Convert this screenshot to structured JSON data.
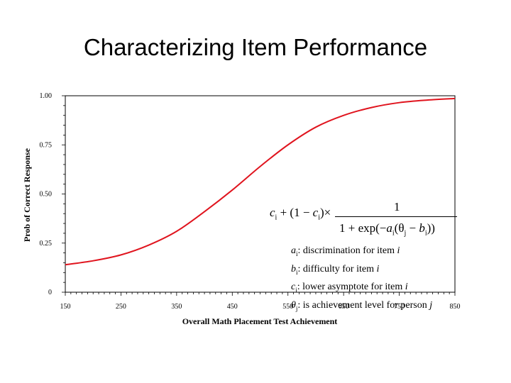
{
  "slide": {
    "title": "Characterizing Item Performance"
  },
  "chart_data": {
    "type": "line",
    "xlabel": "Overall Math Placement Test Achievement",
    "ylabel": "Prob of Correct Response",
    "xlim": [
      150,
      850
    ],
    "ylim": [
      0,
      1
    ],
    "x_ticks": [
      "150",
      "250",
      "350",
      "450",
      "550",
      "650",
      "750",
      "850"
    ],
    "y_ticks": [
      "0",
      "0.25",
      "0.50",
      "0.75",
      "1.00"
    ],
    "grid": false,
    "series": [
      {
        "color": "#e0141e",
        "x": [
          150,
          200,
          250,
          300,
          350,
          400,
          450,
          500,
          550,
          600,
          650,
          700,
          750,
          800,
          850
        ],
        "y": [
          0.14,
          0.16,
          0.19,
          0.24,
          0.31,
          0.41,
          0.52,
          0.64,
          0.75,
          0.84,
          0.9,
          0.94,
          0.965,
          0.978,
          0.986
        ]
      }
    ],
    "formula": {
      "c": "c",
      "i": "i",
      "plus": "+",
      "one_minus": "(1 −",
      "close_paren": ")",
      "times": "×",
      "numerator": "1",
      "denom_start": "1 + exp(−",
      "a": "a",
      "open_theta": "(θ",
      "j": "j",
      "minus": "−",
      "b": "b",
      "denom_end": "))"
    },
    "definitions": [
      {
        "sym": "a",
        "sub": "i",
        "text": ": discrimination for item ",
        "italic_tail": "i"
      },
      {
        "sym": "b",
        "sub": "i",
        "text": ": difficulty for item ",
        "italic_tail": "i"
      },
      {
        "sym": "c",
        "sub": "i",
        "text": ": lower asymptote for item ",
        "italic_tail": "i"
      },
      {
        "sym": "θ",
        "sub": "j",
        "text": ": is achievement level for person ",
        "italic_tail": "j"
      }
    ]
  }
}
